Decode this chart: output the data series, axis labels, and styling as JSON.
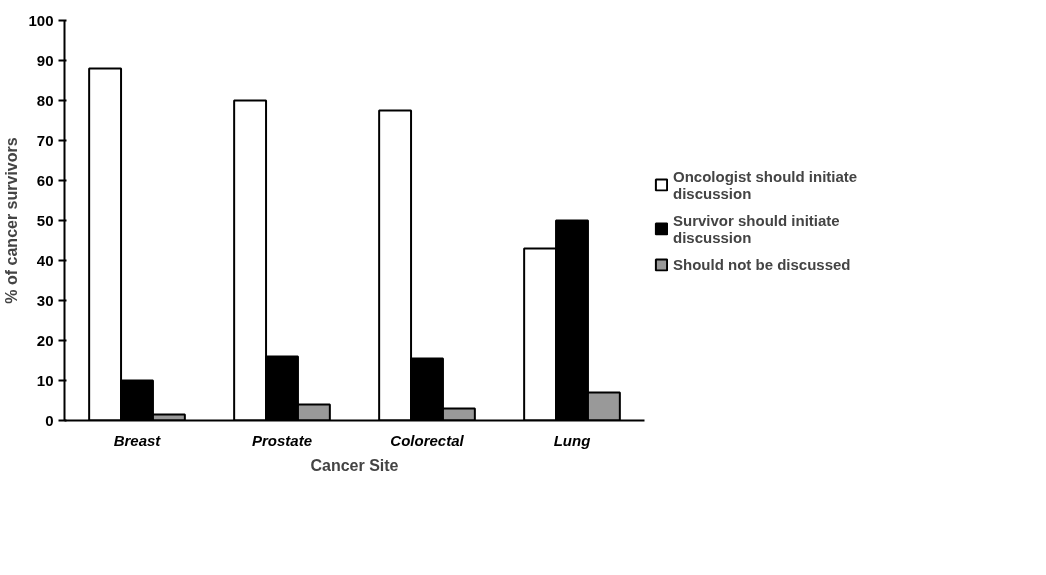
{
  "chart_data": {
    "type": "bar",
    "xlabel": "Cancer Site",
    "ylabel": "% of cancer survivors",
    "categories": [
      "Breast",
      "Prostate",
      "Colorectal",
      "Lung"
    ],
    "series": [
      {
        "name": "Oncologist should initiate discussion",
        "color": "#ffffff",
        "values": [
          88,
          80,
          77.5,
          43
        ]
      },
      {
        "name": "Survivor should initiate discussion",
        "color": "#000000",
        "values": [
          10,
          16,
          15.5,
          50
        ]
      },
      {
        "name": "Should not be discussed",
        "color": "#999999",
        "values": [
          1.5,
          4,
          3,
          7
        ]
      }
    ],
    "ylim": [
      0,
      100
    ],
    "yticks": [
      0,
      10,
      20,
      30,
      40,
      50,
      60,
      70,
      80,
      90,
      100
    ],
    "grid": false,
    "legend": "right"
  }
}
